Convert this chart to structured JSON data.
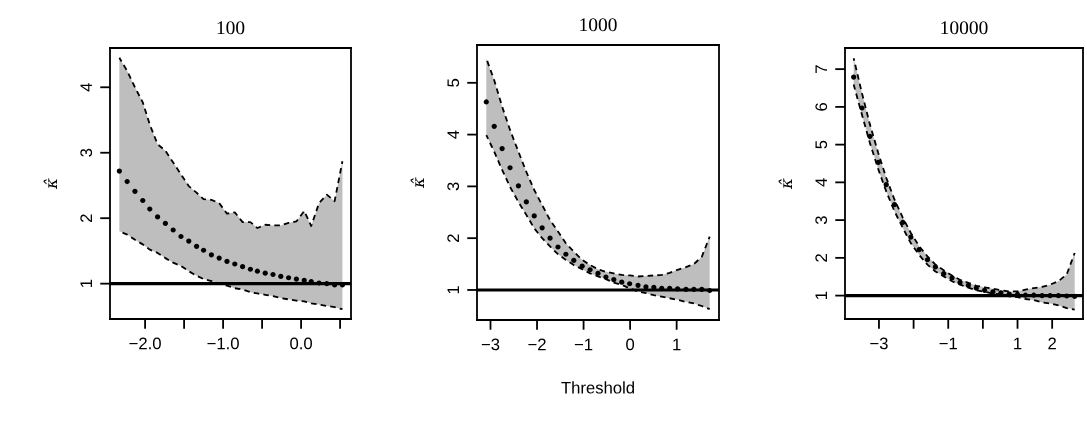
{
  "chart_data": [
    {
      "type": "scatter",
      "title": "100",
      "ylabel": "κ̂",
      "x": [
        -2.33,
        -2.23,
        -2.13,
        -2.03,
        -1.94,
        -1.84,
        -1.74,
        -1.64,
        -1.54,
        -1.44,
        -1.34,
        -1.25,
        -1.15,
        -1.05,
        -0.95,
        -0.85,
        -0.75,
        -0.65,
        -0.56,
        -0.46,
        -0.36,
        -0.26,
        -0.16,
        -0.06,
        0.04,
        0.13,
        0.23,
        0.33,
        0.43,
        0.53
      ],
      "series": [
        {
          "color": "#000000",
          "marker": "circle",
          "values": [
            2.72,
            2.56,
            2.41,
            2.27,
            2.14,
            2.02,
            1.92,
            1.82,
            1.72,
            1.65,
            1.57,
            1.51,
            1.44,
            1.39,
            1.34,
            1.3,
            1.26,
            1.22,
            1.19,
            1.16,
            1.14,
            1.11,
            1.09,
            1.07,
            1.05,
            1.03,
            1.01,
            1.0,
            0.98,
            0.98
          ],
          "lower": [
            1.8,
            1.75,
            1.67,
            1.6,
            1.52,
            1.47,
            1.39,
            1.32,
            1.27,
            1.19,
            1.12,
            1.07,
            1.04,
            1.0,
            0.97,
            0.93,
            0.91,
            0.87,
            0.85,
            0.83,
            0.81,
            0.78,
            0.76,
            0.74,
            0.73,
            0.7,
            0.68,
            0.66,
            0.64,
            0.61
          ],
          "upper": [
            4.45,
            4.25,
            4.0,
            3.77,
            3.43,
            3.13,
            3.03,
            2.85,
            2.67,
            2.49,
            2.39,
            2.29,
            2.28,
            2.23,
            2.07,
            2.09,
            1.94,
            1.94,
            1.85,
            1.9,
            1.89,
            1.89,
            1.93,
            1.95,
            2.11,
            1.88,
            2.23,
            2.36,
            2.26,
            2.87
          ]
        },
        {
          "type": "line",
          "line_style": "dashed",
          "color": "#000000",
          "values": [
            1.8,
            1.75,
            1.67,
            1.6,
            1.52,
            1.47,
            1.39,
            1.32,
            1.27,
            1.19,
            1.12,
            1.07,
            1.04,
            1.0,
            0.97,
            0.93,
            0.91,
            0.87,
            0.85,
            0.83,
            0.81,
            0.78,
            0.76,
            0.74,
            0.73,
            0.7,
            0.68,
            0.66,
            0.64,
            0.61
          ]
        },
        {
          "type": "line",
          "line_style": "dashed",
          "color": "#000000",
          "values": [
            4.45,
            4.25,
            4.0,
            3.77,
            3.43,
            3.13,
            3.03,
            2.85,
            2.67,
            2.49,
            2.39,
            2.29,
            2.28,
            2.23,
            2.07,
            2.09,
            1.94,
            1.94,
            1.85,
            1.9,
            1.89,
            1.89,
            1.93,
            1.95,
            2.11,
            1.88,
            2.23,
            2.36,
            2.26,
            2.87
          ]
        }
      ],
      "xlim": [
        -2.45,
        0.64
      ],
      "ylim": [
        0.46,
        4.6
      ],
      "xticks": [
        {
          "value": -2.0,
          "label": "−2.0"
        },
        {
          "value": -1.5,
          "label": null
        },
        {
          "value": -1.0,
          "label": "−1.0"
        },
        {
          "value": -0.5,
          "label": null
        },
        {
          "value": 0.0,
          "label": "0.0"
        },
        {
          "value": 0.5,
          "label": null
        }
      ],
      "yticks": [
        1,
        2,
        3,
        4
      ],
      "ref_lines": [
        {
          "axis": "y",
          "value": 1,
          "color": "#000000"
        }
      ]
    },
    {
      "type": "scatter",
      "title": "1000",
      "ylabel": "κ̂",
      "xlabel": "Threshold",
      "x": [
        -3.09,
        -2.92,
        -2.75,
        -2.58,
        -2.4,
        -2.23,
        -2.06,
        -1.89,
        -1.72,
        -1.55,
        -1.38,
        -1.21,
        -1.03,
        -0.86,
        -0.69,
        -0.52,
        -0.35,
        -0.18,
        -0.01,
        0.17,
        0.34,
        0.51,
        0.68,
        0.85,
        1.02,
        1.2,
        1.37,
        1.54,
        1.71
      ],
      "series": [
        {
          "color": "#000000",
          "marker": "circle",
          "values": [
            4.63,
            4.16,
            3.73,
            3.36,
            3.01,
            2.7,
            2.43,
            2.2,
            2.0,
            1.83,
            1.69,
            1.57,
            1.46,
            1.39,
            1.32,
            1.25,
            1.2,
            1.15,
            1.12,
            1.09,
            1.06,
            1.05,
            1.03,
            1.03,
            1.02,
            1.01,
            1.01,
            1.01,
            0.99
          ],
          "lower": [
            3.99,
            3.67,
            3.32,
            2.99,
            2.7,
            2.45,
            2.19,
            2.0,
            1.84,
            1.69,
            1.58,
            1.48,
            1.4,
            1.32,
            1.26,
            1.21,
            1.14,
            1.1,
            1.03,
            0.97,
            0.94,
            0.9,
            0.87,
            0.84,
            0.81,
            0.77,
            0.74,
            0.69,
            0.63
          ],
          "upper": [
            5.47,
            5.05,
            4.54,
            4.09,
            3.67,
            3.28,
            2.93,
            2.64,
            2.35,
            2.13,
            1.9,
            1.74,
            1.58,
            1.48,
            1.4,
            1.35,
            1.32,
            1.29,
            1.28,
            1.26,
            1.27,
            1.28,
            1.29,
            1.33,
            1.39,
            1.44,
            1.5,
            1.64,
            2.03
          ]
        },
        {
          "type": "line",
          "line_style": "dashed",
          "color": "#000000",
          "values": [
            3.99,
            3.67,
            3.32,
            2.99,
            2.7,
            2.45,
            2.19,
            2.0,
            1.84,
            1.69,
            1.58,
            1.48,
            1.4,
            1.32,
            1.26,
            1.21,
            1.14,
            1.1,
            1.03,
            0.97,
            0.94,
            0.9,
            0.87,
            0.84,
            0.81,
            0.77,
            0.74,
            0.69,
            0.63
          ]
        },
        {
          "type": "line",
          "line_style": "dashed",
          "color": "#000000",
          "values": [
            5.47,
            5.05,
            4.54,
            4.09,
            3.67,
            3.28,
            2.93,
            2.64,
            2.35,
            2.13,
            1.9,
            1.74,
            1.58,
            1.48,
            1.4,
            1.35,
            1.32,
            1.29,
            1.28,
            1.26,
            1.27,
            1.28,
            1.29,
            1.33,
            1.39,
            1.44,
            1.5,
            1.64,
            2.03
          ]
        }
      ],
      "xlim": [
        -3.29,
        1.91
      ],
      "ylim": [
        0.42,
        5.73
      ],
      "xticks": [
        {
          "value": -3,
          "label": "−3"
        },
        {
          "value": -2,
          "label": "−2"
        },
        {
          "value": -1,
          "label": "−1"
        },
        0,
        1
      ],
      "yticks": [
        1,
        2,
        3,
        4,
        5
      ],
      "ref_lines": [
        {
          "axis": "y",
          "value": 1,
          "color": "#000000"
        }
      ]
    },
    {
      "type": "scatter",
      "title": "10000",
      "ylabel": "κ̂",
      "x": [
        -3.73,
        -3.49,
        -3.26,
        -3.02,
        -2.79,
        -2.55,
        -2.31,
        -2.08,
        -1.84,
        -1.6,
        -1.37,
        -1.13,
        -0.89,
        -0.66,
        -0.42,
        -0.19,
        0.05,
        0.29,
        0.52,
        0.76,
        1.0,
        1.23,
        1.47,
        1.71,
        1.94,
        2.18,
        2.42,
        2.65
      ],
      "series": [
        {
          "color": "#000000",
          "marker": "circle",
          "values": [
            6.79,
            5.97,
            5.22,
            4.53,
            3.94,
            3.41,
            2.94,
            2.55,
            2.22,
            1.95,
            1.76,
            1.58,
            1.47,
            1.35,
            1.27,
            1.2,
            1.14,
            1.1,
            1.07,
            1.04,
            1.03,
            1.01,
            1.01,
            1.0,
            1.0,
            1.0,
            0.99,
            0.98
          ],
          "lower": [
            6.59,
            5.79,
            5.04,
            4.35,
            3.76,
            3.23,
            2.79,
            2.39,
            2.08,
            1.82,
            1.64,
            1.51,
            1.38,
            1.29,
            1.21,
            1.14,
            1.1,
            1.05,
            1.03,
            0.98,
            0.96,
            0.91,
            0.88,
            0.82,
            0.79,
            0.74,
            0.67,
            0.63
          ],
          "upper": [
            7.29,
            6.36,
            5.53,
            4.78,
            4.12,
            3.54,
            3.06,
            2.66,
            2.31,
            2.04,
            1.82,
            1.67,
            1.53,
            1.42,
            1.34,
            1.26,
            1.22,
            1.18,
            1.14,
            1.11,
            1.11,
            1.16,
            1.2,
            1.23,
            1.29,
            1.38,
            1.56,
            2.13
          ]
        },
        {
          "type": "line",
          "line_style": "dashed",
          "color": "#000000",
          "values": [
            6.59,
            5.79,
            5.04,
            4.35,
            3.76,
            3.23,
            2.79,
            2.39,
            2.08,
            1.82,
            1.64,
            1.51,
            1.38,
            1.29,
            1.21,
            1.14,
            1.1,
            1.05,
            1.03,
            0.98,
            0.96,
            0.91,
            0.88,
            0.82,
            0.79,
            0.74,
            0.67,
            0.63
          ]
        },
        {
          "type": "line",
          "line_style": "dashed",
          "color": "#000000",
          "values": [
            7.29,
            6.36,
            5.53,
            4.78,
            4.12,
            3.54,
            3.06,
            2.66,
            2.31,
            2.04,
            1.82,
            1.67,
            1.53,
            1.42,
            1.34,
            1.26,
            1.22,
            1.18,
            1.14,
            1.11,
            1.11,
            1.16,
            1.2,
            1.23,
            1.29,
            1.38,
            1.56,
            2.13
          ]
        }
      ],
      "xlim": [
        -3.98,
        2.89
      ],
      "ylim": [
        0.38,
        7.56
      ],
      "xticks": [
        {
          "value": -3,
          "label": "−3"
        },
        {
          "value": -2,
          "label": null
        },
        {
          "value": -1,
          "label": "−1"
        },
        {
          "value": 0,
          "label": null
        },
        1,
        2
      ],
      "yticks": [
        1,
        2,
        3,
        4,
        5,
        6,
        7
      ],
      "ref_lines": [
        {
          "axis": "y",
          "value": 1,
          "color": "#000000"
        }
      ]
    }
  ]
}
